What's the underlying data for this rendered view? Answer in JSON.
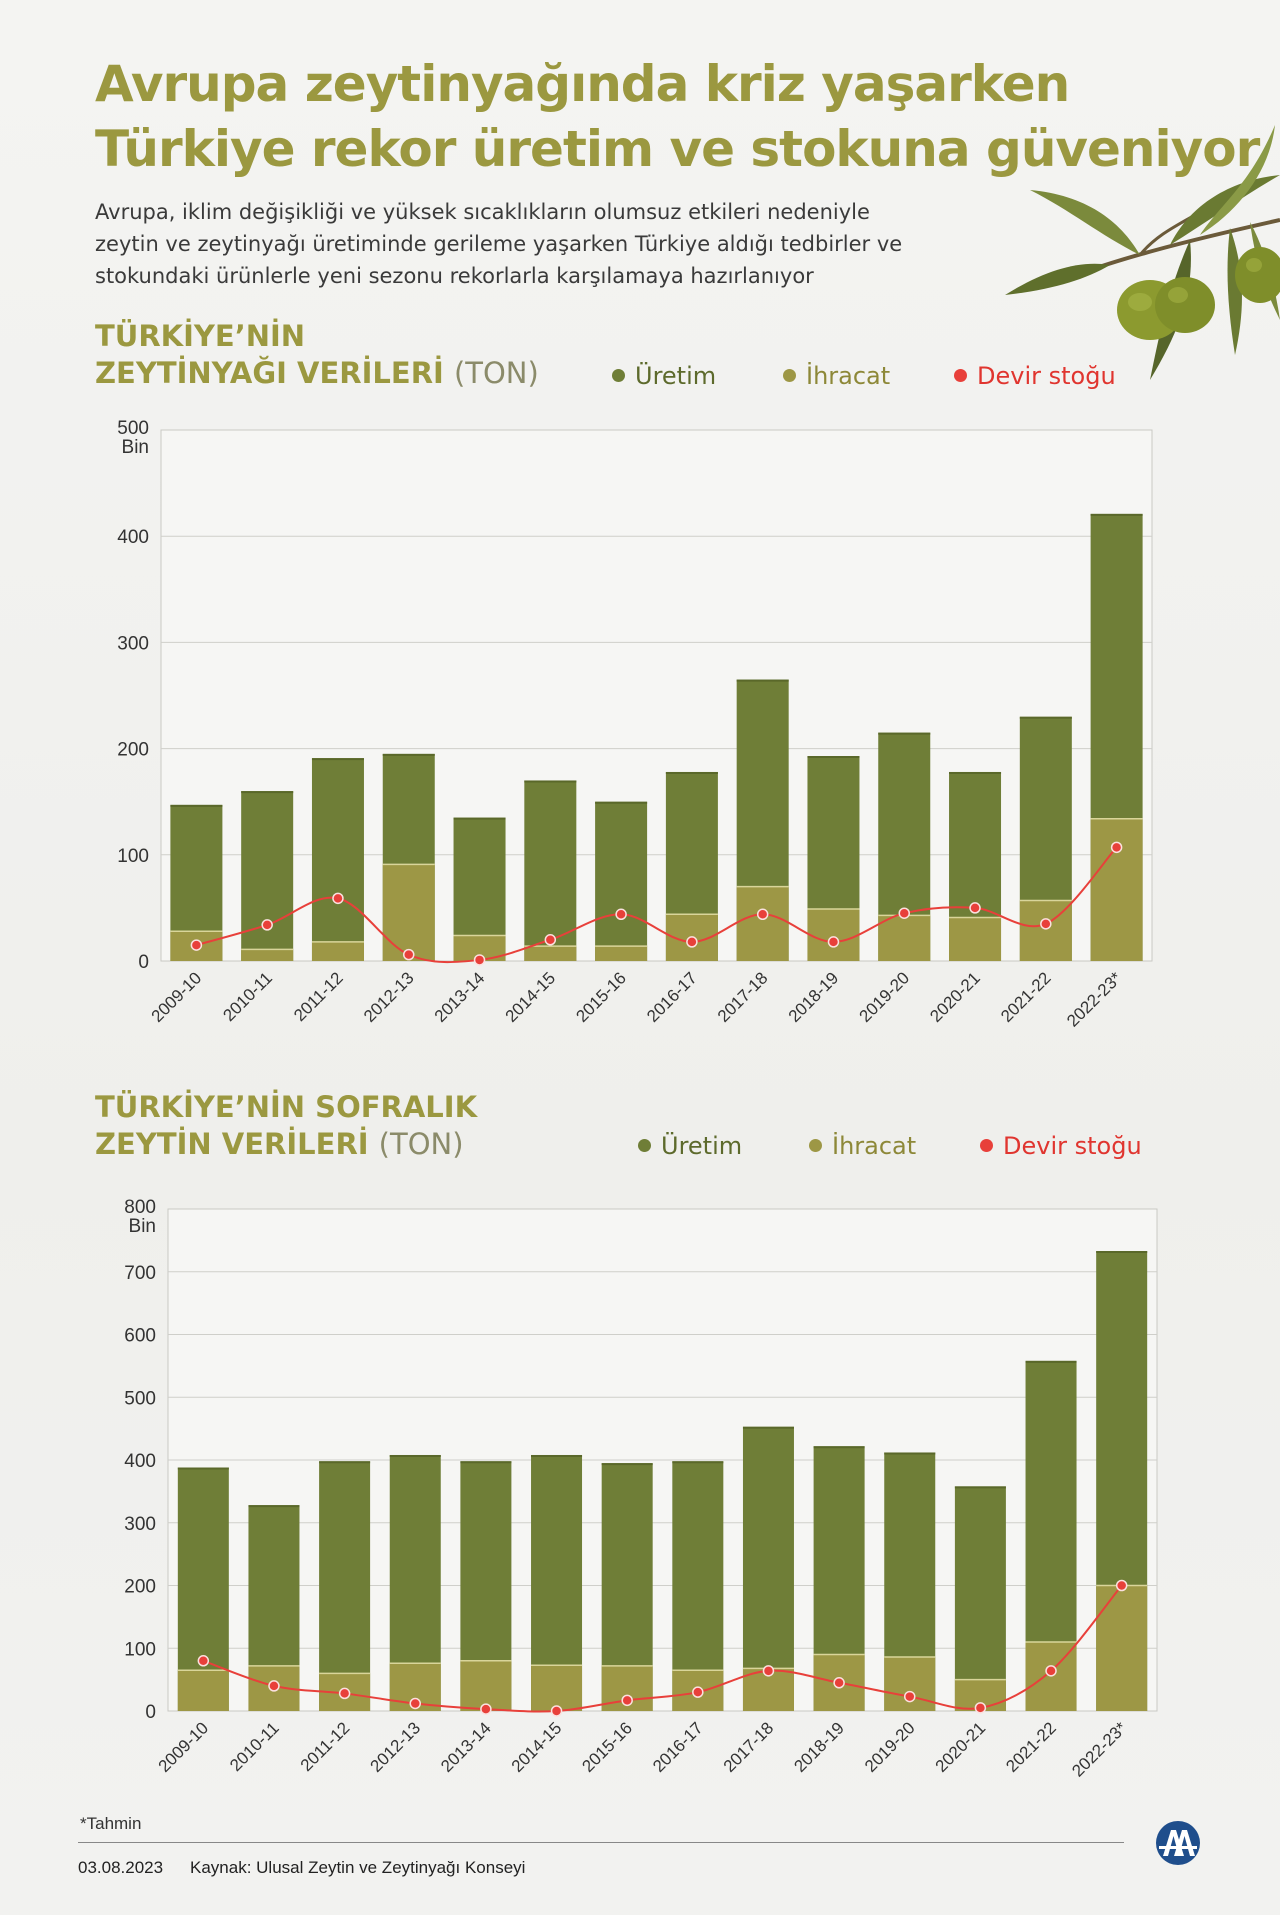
{
  "header": {
    "title_line1": "Avrupa zeytinyağında kriz yaşarken",
    "title_line2": "Türkiye rekor üretim ve stokuna güveniyor",
    "subtitle_line1": "Avrupa, iklim değişikliği ve yüksek sıcaklıkların olumsuz etkileri nedeniyle",
    "subtitle_line2": "zeytin ve zeytinyağı üretiminde gerileme yaşarken Türkiye aldığı tedbirler ve",
    "subtitle_line3": "stokundaki ürünlerle yeni sezonu rekorlarla karşılamaya hazırlanıyor"
  },
  "colors": {
    "production": "#6f7e37",
    "export": "#9d9745",
    "stock": "#e8403a",
    "title": "#9b9840"
  },
  "section1": {
    "title_line1": "TÜRKİYE’NİN",
    "title_line2": "ZEYTİNYAĞI VERİLERİ",
    "unit": "(TON)",
    "legend": {
      "production": "Üretim",
      "export": "İhracat",
      "stock": "Devir stoğu"
    }
  },
  "section2": {
    "title_line1": "TÜRKİYE’NİN SOFRALIK",
    "title_line2": "ZEYTİN VERİLERİ",
    "unit": "(TON)",
    "legend": {
      "production": "Üretim",
      "export": "İhracat",
      "stock": "Devir stoğu"
    }
  },
  "chart_data": [
    {
      "type": "bar",
      "title": "TÜRKİYE’NİN ZEYTİNYAĞI VERİLERİ (TON)",
      "ylabel_unit": "Bin",
      "ylim": [
        0,
        500
      ],
      "yticks": [
        0,
        100,
        200,
        300,
        400,
        500
      ],
      "categories": [
        "2009-10",
        "2010-11",
        "2011-12",
        "2012-13",
        "2013-14",
        "2014-15",
        "2015-16",
        "2016-17",
        "2017-18",
        "2018-19",
        "2019-20",
        "2020-21",
        "2021-22",
        "2022-23*"
      ],
      "series": [
        {
          "name": "Üretim",
          "type": "bar",
          "values": [
            147,
            160,
            191,
            195,
            135,
            170,
            150,
            178,
            265,
            193,
            215,
            178,
            230,
            421
          ]
        },
        {
          "name": "İhracat",
          "type": "bar",
          "values": [
            28,
            11,
            18,
            91,
            24,
            14,
            14,
            44,
            70,
            49,
            43,
            41,
            57,
            134
          ]
        },
        {
          "name": "Devir stoğu",
          "type": "line",
          "values": [
            15,
            34,
            59,
            6,
            1,
            20,
            44,
            18,
            44,
            18,
            45,
            50,
            35,
            107
          ]
        }
      ]
    },
    {
      "type": "bar",
      "title": "TÜRKİYE’NİN SOFRALIK ZEYTİN VERİLERİ (TON)",
      "ylabel_unit": "Bin",
      "ylim": [
        0,
        800
      ],
      "yticks": [
        0,
        100,
        200,
        300,
        400,
        500,
        600,
        700,
        800
      ],
      "categories": [
        "2009-10",
        "2010-11",
        "2011-12",
        "2012-13",
        "2013-14",
        "2014-15",
        "2015-16",
        "2016-17",
        "2017-18",
        "2018-19",
        "2019-20",
        "2020-21",
        "2021-22",
        "2022-23*"
      ],
      "series": [
        {
          "name": "Üretim",
          "type": "bar",
          "values": [
            388,
            328,
            398,
            408,
            398,
            408,
            395,
            398,
            453,
            422,
            412,
            358,
            558,
            733
          ]
        },
        {
          "name": "İhracat",
          "type": "bar",
          "values": [
            65,
            72,
            60,
            76,
            80,
            73,
            72,
            65,
            68,
            90,
            86,
            50,
            110,
            200
          ]
        },
        {
          "name": "Devir stoğu",
          "type": "line",
          "values": [
            80,
            40,
            28,
            12,
            3,
            0,
            17,
            30,
            64,
            45,
            23,
            5,
            64,
            200
          ]
        }
      ]
    }
  ],
  "footer": {
    "note": "*Tahmin",
    "date": "03.08.2023",
    "source": "Kaynak: Ulusal Zeytin ve Zeytinyağı Konseyi"
  }
}
